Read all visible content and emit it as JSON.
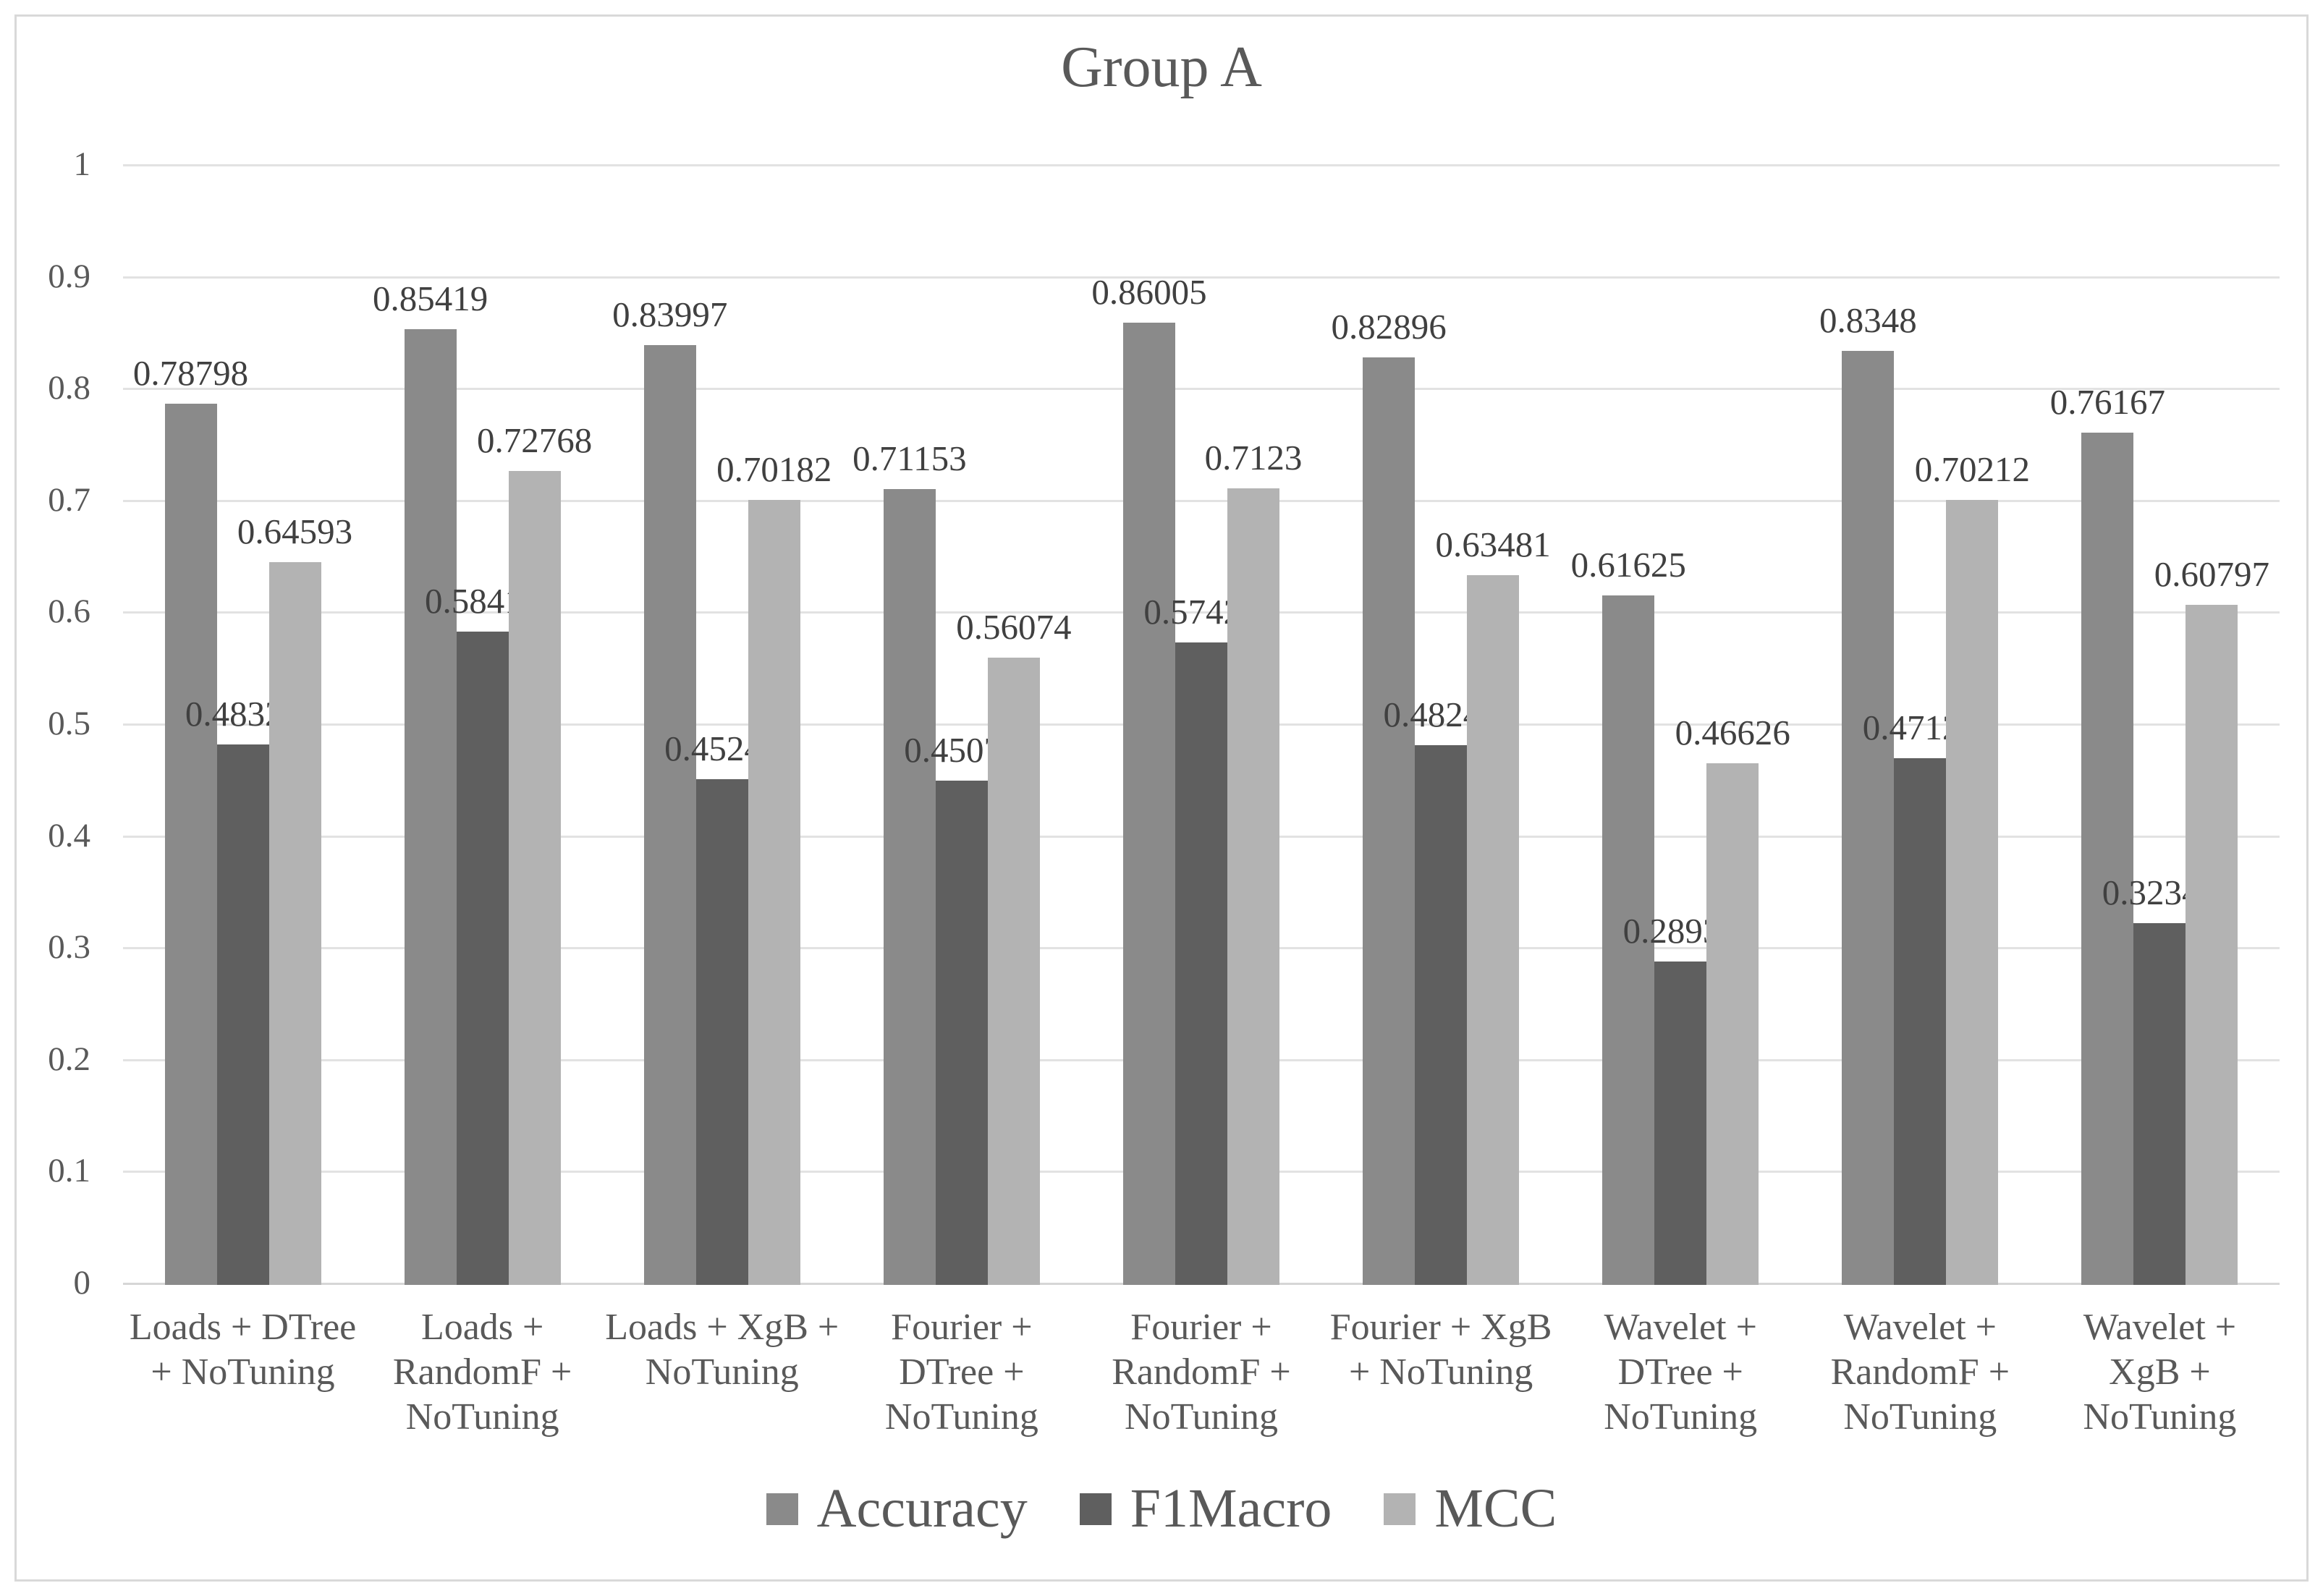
{
  "chart_data": {
    "type": "bar",
    "title": "Group A",
    "categories": [
      {
        "name": "Loads + DTree + NoTuning",
        "lines": [
          "Loads + DTree",
          "+ NoTuning"
        ]
      },
      {
        "name": "Loads + RandomF + NoTuning",
        "lines": [
          "Loads +",
          "RandomF +",
          "NoTuning"
        ]
      },
      {
        "name": "Loads + XgB + NoTuning",
        "lines": [
          "Loads + XgB +",
          "NoTuning"
        ]
      },
      {
        "name": "Fourier + DTree + NoTuning",
        "lines": [
          "Fourier +",
          "DTree +",
          "NoTuning"
        ]
      },
      {
        "name": "Fourier + RandomF + NoTuning",
        "lines": [
          "Fourier +",
          "RandomF +",
          "NoTuning"
        ]
      },
      {
        "name": "Fourier + XgB + NoTuning",
        "lines": [
          "Fourier + XgB",
          "+ NoTuning"
        ]
      },
      {
        "name": "Wavelet + DTree + NoTuning",
        "lines": [
          "Wavelet +",
          "DTree +",
          "NoTuning"
        ]
      },
      {
        "name": "Wavelet + RandomF + NoTuning",
        "lines": [
          "Wavelet +",
          "RandomF +",
          "NoTuning"
        ]
      },
      {
        "name": "Wavelet + XgB + NoTuning",
        "lines": [
          "Wavelet +",
          "XgB +",
          "NoTuning"
        ]
      }
    ],
    "series": [
      {
        "name": "Accuracy",
        "color": "#8a8a8a",
        "values": [
          0.78798,
          0.85419,
          0.83997,
          0.71153,
          0.86005,
          0.82896,
          0.61625,
          0.8348,
          0.76167
        ]
      },
      {
        "name": "F1Macro",
        "color": "#5f5f5f",
        "values": [
          0.48325,
          0.58415,
          0.45241,
          0.45077,
          0.57421,
          0.48245,
          0.28933,
          0.47122,
          0.32341
        ]
      },
      {
        "name": "MCC",
        "color": "#b3b3b3",
        "values": [
          0.64593,
          0.72768,
          0.70182,
          0.56074,
          0.7123,
          0.63481,
          0.46626,
          0.70212,
          0.60797
        ]
      }
    ],
    "y_axis": {
      "min": 0,
      "max": 1,
      "tick_step": 0.1,
      "tick_labels": [
        "0",
        "0.1",
        "0.2",
        "0.3",
        "0.4",
        "0.5",
        "0.6",
        "0.7",
        "0.8",
        "0.9",
        "1"
      ]
    },
    "grid": true,
    "data_labels": true,
    "legend_position": "bottom",
    "colors": {
      "text": "#595959",
      "data_label_text": "#404040",
      "gridline": "#e2e2e2",
      "axis_line": "#d6d6d6",
      "frame_border": "#d9d9d9",
      "background": "#ffffff"
    }
  }
}
